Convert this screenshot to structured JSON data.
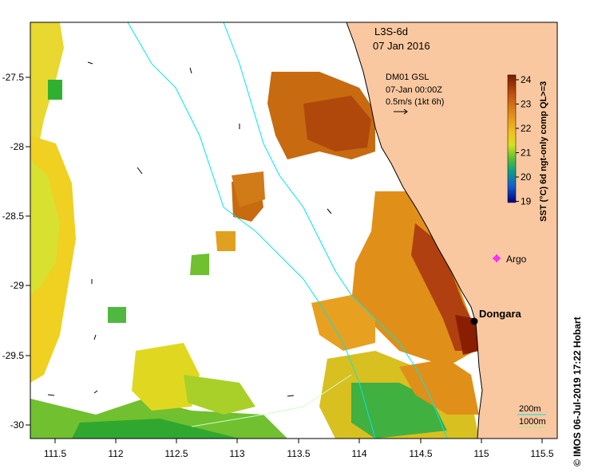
{
  "title": {
    "product": "L3S-6d",
    "date": "07 Jan 2016"
  },
  "current_info": {
    "source": "DM01 GSL",
    "timestamp": "07-Jan 00:00Z",
    "scale": "0.5m/s (1kt 6h)"
  },
  "colorbar": {
    "label": "SST (°C) 6d ngt-only comp QL>=3",
    "ticks": [
      "24",
      "23",
      "22",
      "21",
      "20",
      "19"
    ],
    "colors_top_to_bottom": [
      "#7a1a00",
      "#b8400a",
      "#e0801a",
      "#f2c020",
      "#e8e020",
      "#a0d030",
      "#30b030",
      "#10a0a0",
      "#1060d0",
      "#000080"
    ]
  },
  "axes": {
    "x_ticks": [
      "111.5",
      "112",
      "112.5",
      "113",
      "113.5",
      "114",
      "114.5",
      "115",
      "115.5"
    ],
    "y_ticks": [
      "-27.5",
      "-28",
      "-28.5",
      "-29",
      "-29.5",
      "-30"
    ]
  },
  "places": {
    "dongara": "Dongara",
    "argo": "Argo"
  },
  "legend": {
    "contour_200": "200m",
    "contour_1000": "1000m"
  },
  "credit": "© IMOS 06-Jul-2019 17:22 Hobart",
  "colors": {
    "land": "#f9c8a0",
    "isobath_200": "#00e5ee",
    "isobath_1000": "#90ee90",
    "argo_marker": "#ff00ff"
  }
}
